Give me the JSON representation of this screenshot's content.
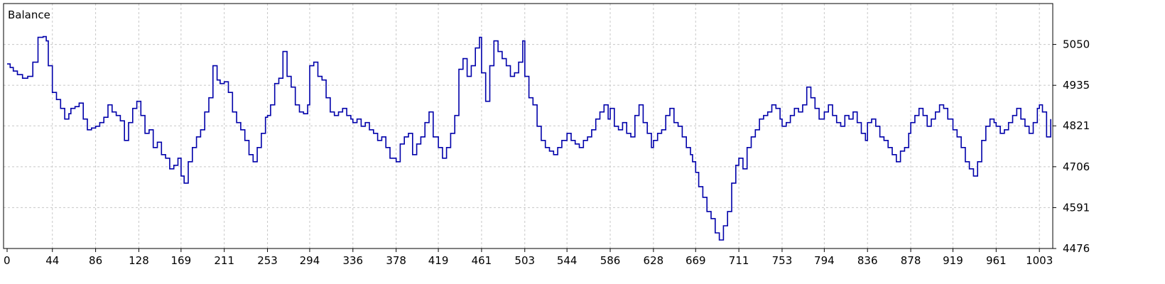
{
  "chart_data": {
    "type": "line",
    "legend": {
      "label": "Balance",
      "position": "top-left"
    },
    "xlabel": "",
    "ylabel": "",
    "xlim": [
      0,
      1016
    ],
    "ylim": [
      4476,
      5165
    ],
    "x_ticks": [
      "0",
      "44",
      "86",
      "128",
      "169",
      "211",
      "253",
      "294",
      "336",
      "378",
      "419",
      "461",
      "503",
      "544",
      "586",
      "628",
      "669",
      "711",
      "753",
      "794",
      "836",
      "878",
      "919",
      "961",
      "1003"
    ],
    "y_ticks": [
      "5050",
      "4935",
      "4821",
      "4706",
      "4591",
      "4476"
    ],
    "grid": true,
    "grid_style": "dashed",
    "colors": {
      "series": "#0000aa",
      "grid": "#c8c8c8",
      "axis": "#000000"
    },
    "series": [
      {
        "name": "Balance",
        "x": [
          0,
          3,
          6,
          10,
          15,
          20,
          25,
          30,
          35,
          38,
          40,
          44,
          48,
          52,
          56,
          60,
          62,
          66,
          70,
          74,
          78,
          82,
          86,
          90,
          94,
          98,
          102,
          106,
          110,
          114,
          118,
          122,
          126,
          130,
          134,
          138,
          142,
          146,
          150,
          154,
          158,
          162,
          166,
          169,
          172,
          176,
          180,
          184,
          188,
          192,
          196,
          200,
          204,
          207,
          211,
          215,
          219,
          223,
          227,
          231,
          235,
          239,
          243,
          247,
          251,
          253,
          256,
          260,
          264,
          268,
          272,
          276,
          280,
          284,
          288,
          292,
          294,
          298,
          302,
          306,
          310,
          314,
          318,
          322,
          326,
          330,
          334,
          336,
          340,
          344,
          348,
          352,
          356,
          360,
          364,
          368,
          372,
          378,
          382,
          386,
          390,
          394,
          398,
          402,
          406,
          410,
          414,
          419,
          423,
          427,
          431,
          435,
          439,
          443,
          447,
          451,
          455,
          459,
          461,
          465,
          469,
          473,
          477,
          481,
          485,
          489,
          493,
          497,
          501,
          503,
          507,
          511,
          515,
          519,
          523,
          527,
          531,
          535,
          539,
          544,
          548,
          552,
          556,
          560,
          564,
          568,
          572,
          576,
          580,
          584,
          586,
          590,
          594,
          598,
          602,
          606,
          610,
          614,
          618,
          622,
          626,
          628,
          632,
          636,
          640,
          644,
          648,
          652,
          656,
          660,
          664,
          666,
          669,
          672,
          676,
          680,
          684,
          688,
          692,
          696,
          700,
          704,
          708,
          711,
          715,
          719,
          723,
          727,
          731,
          735,
          739,
          743,
          747,
          751,
          753,
          757,
          761,
          765,
          769,
          773,
          777,
          781,
          785,
          789,
          794,
          798,
          802,
          806,
          810,
          814,
          818,
          822,
          826,
          830,
          834,
          836,
          840,
          844,
          848,
          852,
          856,
          860,
          864,
          868,
          872,
          876,
          878,
          882,
          886,
          890,
          894,
          898,
          902,
          906,
          910,
          914,
          919,
          923,
          927,
          931,
          935,
          939,
          943,
          947,
          951,
          955,
          959,
          961,
          965,
          969,
          973,
          977,
          981,
          985,
          989,
          993,
          997,
          1001,
          1003,
          1006,
          1010,
          1014
        ],
        "y": [
          4995,
          4985,
          4975,
          4965,
          4955,
          4960,
          5000,
          5070,
          5072,
          5060,
          4990,
          4915,
          4895,
          4870,
          4840,
          4855,
          4870,
          4875,
          4885,
          4840,
          4810,
          4815,
          4820,
          4830,
          4845,
          4880,
          4860,
          4850,
          4835,
          4780,
          4830,
          4870,
          4890,
          4850,
          4800,
          4810,
          4760,
          4775,
          4740,
          4730,
          4700,
          4710,
          4730,
          4680,
          4660,
          4720,
          4760,
          4790,
          4810,
          4860,
          4900,
          4990,
          4950,
          4940,
          4945,
          4915,
          4860,
          4830,
          4810,
          4780,
          4740,
          4720,
          4760,
          4800,
          4845,
          4850,
          4880,
          4940,
          4955,
          5030,
          4960,
          4930,
          4880,
          4860,
          4855,
          4880,
          4990,
          5000,
          4960,
          4950,
          4900,
          4860,
          4850,
          4860,
          4870,
          4850,
          4840,
          4830,
          4840,
          4820,
          4830,
          4810,
          4800,
          4780,
          4790,
          4760,
          4730,
          4720,
          4770,
          4790,
          4800,
          4740,
          4770,
          4790,
          4830,
          4860,
          4790,
          4760,
          4730,
          4760,
          4800,
          4850,
          4980,
          5010,
          4960,
          4990,
          5040,
          5070,
          4970,
          4890,
          4990,
          5060,
          5030,
          5010,
          4990,
          4960,
          4970,
          5000,
          5060,
          4960,
          4900,
          4880,
          4820,
          4780,
          4760,
          4750,
          4740,
          4760,
          4780,
          4800,
          4780,
          4770,
          4760,
          4780,
          4790,
          4810,
          4840,
          4860,
          4880,
          4840,
          4870,
          4820,
          4810,
          4830,
          4800,
          4790,
          4850,
          4880,
          4830,
          4800,
          4760,
          4780,
          4800,
          4810,
          4850,
          4870,
          4830,
          4820,
          4790,
          4760,
          4740,
          4720,
          4690,
          4650,
          4620,
          4580,
          4560,
          4520,
          4500,
          4540,
          4580,
          4660,
          4710,
          4730,
          4700,
          4760,
          4790,
          4810,
          4840,
          4850,
          4860,
          4880,
          4870,
          4840,
          4820,
          4830,
          4850,
          4870,
          4860,
          4880,
          4930,
          4900,
          4870,
          4840,
          4860,
          4880,
          4850,
          4830,
          4820,
          4850,
          4840,
          4860,
          4830,
          4800,
          4780,
          4830,
          4840,
          4820,
          4790,
          4780,
          4760,
          4740,
          4720,
          4750,
          4760,
          4800,
          4830,
          4850,
          4870,
          4850,
          4820,
          4840,
          4860,
          4880,
          4870,
          4840,
          4810,
          4790,
          4760,
          4720,
          4700,
          4680,
          4720,
          4780,
          4820,
          4840,
          4830,
          4820,
          4800,
          4810,
          4830,
          4850,
          4870,
          4840,
          4820,
          4800,
          4830,
          4870,
          4880,
          4860,
          4790,
          4840
        ]
      }
    ]
  }
}
